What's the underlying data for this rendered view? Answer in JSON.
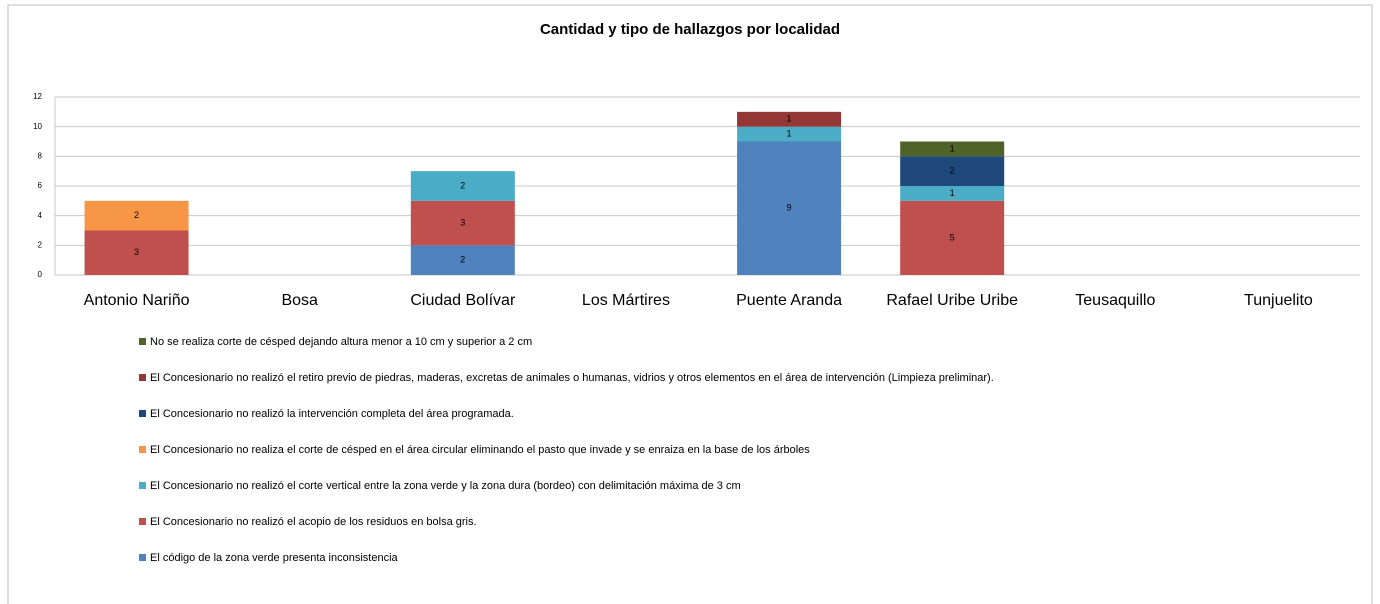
{
  "chart_data": {
    "type": "stacked_bar",
    "title": "Cantidad y tipo de hallazgos por localidad",
    "categories": [
      "Antonio Nariño",
      "Bosa",
      "Ciudad Bolívar",
      "Los Mártires",
      "Puente Aranda",
      "Rafael Uribe Uribe",
      "Teusaquillo",
      "Tunjuelito"
    ],
    "series": [
      {
        "name": "El código de la zona verde presenta inconsistencia",
        "color": "#4f81bd",
        "values": [
          null,
          null,
          2,
          null,
          9,
          null,
          null,
          null
        ]
      },
      {
        "name": "El Concesionario no realizó el acopio de los residuos en bolsa gris.",
        "color": "#c0504d",
        "values": [
          3,
          null,
          3,
          null,
          null,
          5,
          null,
          null
        ]
      },
      {
        "name": "El Concesionario no realizó el corte vertical entre la zona verde y la zona dura (bordeo) con delimitación máxima de 3 cm",
        "color": "#4bacc6",
        "values": [
          null,
          null,
          2,
          null,
          1,
          1,
          null,
          null
        ]
      },
      {
        "name": "El Concesionario no  realiza el corte de césped en el área circular eliminando el pasto que invade y se enraiza en la base de los árboles",
        "color": "#f79646",
        "values": [
          2,
          null,
          null,
          null,
          null,
          null,
          null,
          null
        ]
      },
      {
        "name": "El Concesionario no realizó la intervención completa del área programada.",
        "color": "#1f497d",
        "values": [
          null,
          null,
          null,
          null,
          null,
          2,
          null,
          null
        ]
      },
      {
        "name": "El Concesionario no realizó el retiro previo de piedras, maderas, excretas de animales o humanas, vidrios y otros elementos en el área de intervención (Limpieza preliminar).",
        "color": "#953735",
        "values": [
          null,
          null,
          null,
          null,
          1,
          null,
          null,
          null
        ]
      },
      {
        "name": "No se realiza corte de césped dejando altura menor a 10 cm y superior a 2 cm",
        "color": "#4f6228",
        "values": [
          null,
          null,
          null,
          null,
          null,
          1,
          null,
          null
        ]
      }
    ],
    "ylim": [
      0,
      12
    ],
    "yticks": [
      0,
      2,
      4,
      6,
      8,
      10,
      12
    ],
    "grid": true
  }
}
